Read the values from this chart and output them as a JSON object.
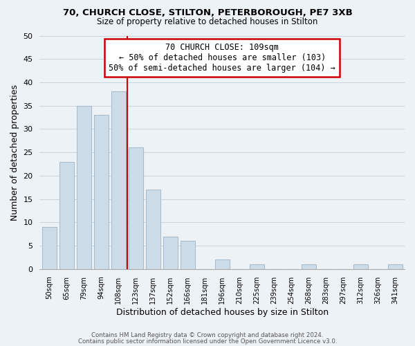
{
  "title1": "70, CHURCH CLOSE, STILTON, PETERBOROUGH, PE7 3XB",
  "title2": "Size of property relative to detached houses in Stilton",
  "xlabel": "Distribution of detached houses by size in Stilton",
  "ylabel": "Number of detached properties",
  "footer1": "Contains HM Land Registry data © Crown copyright and database right 2024.",
  "footer2": "Contains public sector information licensed under the Open Government Licence v3.0.",
  "categories": [
    "50sqm",
    "65sqm",
    "79sqm",
    "94sqm",
    "108sqm",
    "123sqm",
    "137sqm",
    "152sqm",
    "166sqm",
    "181sqm",
    "196sqm",
    "210sqm",
    "225sqm",
    "239sqm",
    "254sqm",
    "268sqm",
    "283sqm",
    "297sqm",
    "312sqm",
    "326sqm",
    "341sqm"
  ],
  "values": [
    9,
    23,
    35,
    33,
    38,
    26,
    17,
    7,
    6,
    0,
    2,
    0,
    1,
    0,
    0,
    1,
    0,
    0,
    1,
    0,
    1
  ],
  "bar_color": "#ccdce8",
  "bar_edge_color": "#aabccc",
  "vline_x": 4.5,
  "vline_color": "#cc0000",
  "annotation_title": "70 CHURCH CLOSE: 109sqm",
  "annotation_line1": "← 50% of detached houses are smaller (103)",
  "annotation_line2": "50% of semi-detached houses are larger (104) →",
  "annotation_box_color": "#ffffff",
  "annotation_box_edge": "#cc0000",
  "ylim": [
    0,
    50
  ],
  "yticks": [
    0,
    5,
    10,
    15,
    20,
    25,
    30,
    35,
    40,
    45,
    50
  ],
  "grid_color": "#c8d4de",
  "bg_color": "#edf2f6"
}
